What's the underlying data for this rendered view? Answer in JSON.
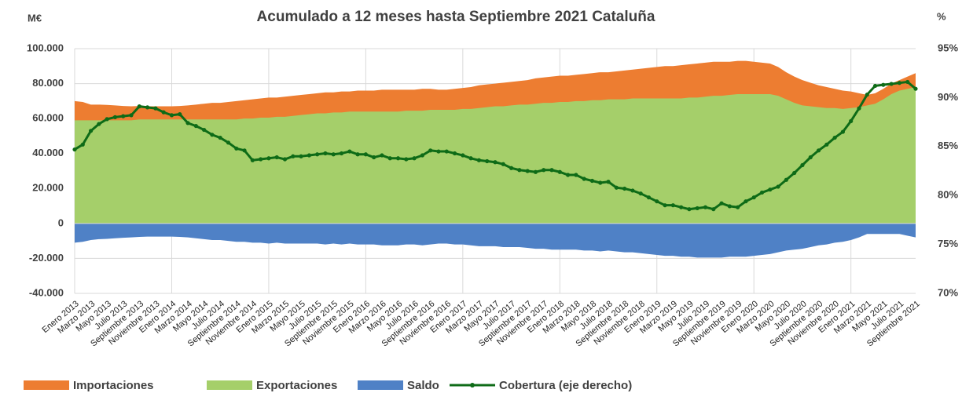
{
  "chart_data": {
    "type": "area_line",
    "title": "Acumulado a 12 meses hasta Septiembre 2021 Cataluña",
    "y_label": "M€",
    "y2_label": "%",
    "categories": [
      "Enero 2013",
      null,
      "Marzo 2013",
      null,
      "Mayo 2013",
      null,
      "Julio 2013",
      null,
      "Septiembre 2013",
      null,
      "Noviembre 2013",
      null,
      "Enero 2014",
      null,
      "Marzo 2014",
      null,
      "Mayo 2014",
      null,
      "Julio 2014",
      null,
      "Septiembre 2014",
      null,
      "Noviembre 2014",
      null,
      "Enero 2015",
      null,
      "Marzo 2015",
      null,
      "Mayo 2015",
      null,
      "Julio 2015",
      null,
      "Septiembre 2015",
      null,
      "Noviembre 2015",
      null,
      "Enero 2016",
      null,
      "Marzo 2016",
      null,
      "Mayo 2016",
      null,
      "Julio 2016",
      null,
      "Septiembre 2016",
      null,
      "Noviembre 2016",
      null,
      "Enero 2017",
      null,
      "Marzo 2017",
      null,
      "Mayo 2017",
      null,
      "Julio 2017",
      null,
      "Septiembre 2017",
      null,
      "Noviembre 2017",
      null,
      "Enero 2018",
      null,
      "Marzo 2018",
      null,
      "Mayo 2018",
      null,
      "Julio 2018",
      null,
      "Septiembre 2018",
      null,
      "Noviembre 2018",
      null,
      "Enero 2019",
      null,
      "Marzo 2019",
      null,
      "Mayo 2019",
      null,
      "Julio 2019",
      null,
      "Septiembre 2019",
      null,
      "Noviembre 2019",
      null,
      "Enero 2020",
      null,
      "Marzo 2020",
      null,
      "Mayo 2020",
      null,
      "Julio 2020",
      null,
      "Septiembre 2020",
      null,
      "Noviembre 2020",
      null,
      "Enero 2021",
      null,
      "Marzo 2021",
      null,
      "Mayo 2021",
      null,
      "Julio 2021",
      null,
      "Septiembre 2021"
    ],
    "series": [
      {
        "name": "Importaciones",
        "color": "#ed7d31",
        "kind": "area",
        "values": [
          70000,
          69500,
          68000,
          68000,
          67800,
          67500,
          67200,
          67000,
          67200,
          67000,
          67000,
          67000,
          67000,
          67200,
          67500,
          68000,
          68500,
          69000,
          69000,
          69500,
          70000,
          70500,
          71000,
          71500,
          72000,
          72000,
          72500,
          73000,
          73500,
          74000,
          74500,
          75000,
          75000,
          75500,
          75500,
          76000,
          76000,
          76000,
          76500,
          76500,
          76500,
          76500,
          76500,
          77000,
          77000,
          76500,
          76500,
          77000,
          77500,
          78000,
          79000,
          79500,
          80000,
          80500,
          81000,
          81500,
          82000,
          83000,
          83500,
          84000,
          84500,
          84500,
          85000,
          85500,
          86000,
          86500,
          86500,
          87000,
          87500,
          88000,
          88500,
          89000,
          89500,
          90000,
          90000,
          90500,
          91000,
          91500,
          92000,
          92500,
          92500,
          92500,
          93000,
          93000,
          92500,
          92000,
          91500,
          89500,
          86500,
          84000,
          82000,
          80500,
          79000,
          78000,
          77000,
          76000,
          75500,
          74500,
          73500,
          74500,
          77000,
          80000,
          82000,
          84000,
          86000
        ]
      },
      {
        "name": "Exportaciones",
        "color": "#a5cf6a",
        "kind": "area",
        "values": [
          59000,
          59000,
          59000,
          59000,
          59000,
          59000,
          59000,
          59000,
          59500,
          59500,
          59500,
          59500,
          59500,
          59500,
          59500,
          59500,
          59500,
          59500,
          59500,
          59500,
          59500,
          60000,
          60000,
          60500,
          60500,
          61000,
          61000,
          61500,
          62000,
          62500,
          63000,
          63000,
          63500,
          63500,
          64000,
          64000,
          64000,
          64000,
          64000,
          64000,
          64000,
          64500,
          64500,
          64500,
          65000,
          65000,
          65000,
          65000,
          65500,
          65500,
          66000,
          66500,
          67000,
          67000,
          67500,
          68000,
          68000,
          68500,
          69000,
          69000,
          69500,
          69500,
          70000,
          70000,
          70500,
          70500,
          71000,
          71000,
          71000,
          71500,
          71500,
          71500,
          71500,
          71500,
          71500,
          71500,
          72000,
          72000,
          72500,
          73000,
          73000,
          73500,
          74000,
          74000,
          74000,
          74000,
          74000,
          73000,
          71000,
          69000,
          67500,
          67000,
          66500,
          66000,
          66000,
          65500,
          66000,
          66500,
          67500,
          68500,
          71000,
          74000,
          76000,
          77000,
          78000
        ]
      },
      {
        "name": "Saldo",
        "color": "#4f81c6",
        "kind": "area",
        "values": [
          -11000,
          -10500,
          -9500,
          -9000,
          -8800,
          -8500,
          -8200,
          -8000,
          -7700,
          -7500,
          -7500,
          -7500,
          -7500,
          -7700,
          -8000,
          -8500,
          -9000,
          -9500,
          -9500,
          -10000,
          -10500,
          -10500,
          -11000,
          -11000,
          -11500,
          -11000,
          -11500,
          -11500,
          -11500,
          -11500,
          -11500,
          -12000,
          -11500,
          -12000,
          -11500,
          -12000,
          -12000,
          -12000,
          -12500,
          -12500,
          -12500,
          -12000,
          -12000,
          -12500,
          -12000,
          -11500,
          -11500,
          -12000,
          -12000,
          -12500,
          -13000,
          -13000,
          -13000,
          -13500,
          -13500,
          -13500,
          -14000,
          -14500,
          -14500,
          -15000,
          -15000,
          -15000,
          -15000,
          -15500,
          -15500,
          -16000,
          -15500,
          -16000,
          -16500,
          -16500,
          -17000,
          -17500,
          -18000,
          -18500,
          -18500,
          -19000,
          -19000,
          -19500,
          -19500,
          -19500,
          -19500,
          -19000,
          -19000,
          -19000,
          -18500,
          -18000,
          -17500,
          -16500,
          -15500,
          -15000,
          -14500,
          -13500,
          -12500,
          -12000,
          -11000,
          -10500,
          -9500,
          -8000,
          -6000,
          -6000,
          -6000,
          -6000,
          -6000,
          -7000,
          -8000
        ]
      },
      {
        "name": "Cobertura (eje derecho)",
        "color": "#0e6b17",
        "kind": "line",
        "axis": "y2",
        "values": [
          84.7,
          85.2,
          86.6,
          87.3,
          87.8,
          88.0,
          88.1,
          88.2,
          89.1,
          89.0,
          88.9,
          88.5,
          88.2,
          88.3,
          87.4,
          87.1,
          86.7,
          86.2,
          85.9,
          85.4,
          84.8,
          84.6,
          83.6,
          83.7,
          83.8,
          83.9,
          83.7,
          84.0,
          84.0,
          84.1,
          84.2,
          84.3,
          84.2,
          84.3,
          84.5,
          84.2,
          84.2,
          83.9,
          84.1,
          83.8,
          83.8,
          83.7,
          83.8,
          84.1,
          84.6,
          84.5,
          84.5,
          84.3,
          84.1,
          83.8,
          83.6,
          83.5,
          83.4,
          83.2,
          82.8,
          82.6,
          82.5,
          82.4,
          82.6,
          82.6,
          82.4,
          82.1,
          82.1,
          81.7,
          81.5,
          81.3,
          81.4,
          80.8,
          80.7,
          80.5,
          80.2,
          79.8,
          79.4,
          79.0,
          79.0,
          78.8,
          78.6,
          78.7,
          78.8,
          78.6,
          79.2,
          78.9,
          78.8,
          79.4,
          79.8,
          80.3,
          80.6,
          80.9,
          81.6,
          82.3,
          83.1,
          83.9,
          84.6,
          85.2,
          85.9,
          86.5,
          87.6,
          88.9,
          90.3,
          91.2,
          91.3,
          91.4,
          91.5,
          91.6,
          90.9
        ]
      }
    ],
    "ylim": [
      -40000,
      100000
    ],
    "yticks": [
      {
        "value": -40000,
        "label": "-40.000"
      },
      {
        "value": -20000,
        "label": "-20.000"
      },
      0,
      {
        "value": 20000,
        "label": "20.000"
      },
      {
        "value": 40000,
        "label": "40.000"
      },
      {
        "value": 60000,
        "label": "60.000"
      },
      {
        "value": 80000,
        "label": "80.000"
      },
      {
        "value": 100000,
        "label": "100.000"
      }
    ],
    "y2lim": [
      70,
      95
    ],
    "y2ticks": [
      {
        "value": 70,
        "label": "70%"
      },
      {
        "value": 75,
        "label": "75%"
      },
      {
        "value": 80,
        "label": "80%"
      },
      {
        "value": 85,
        "label": "85%"
      },
      {
        "value": 90,
        "label": "90%"
      },
      {
        "value": 95,
        "label": "95%"
      }
    ],
    "grid": true,
    "legend": "bottom"
  }
}
